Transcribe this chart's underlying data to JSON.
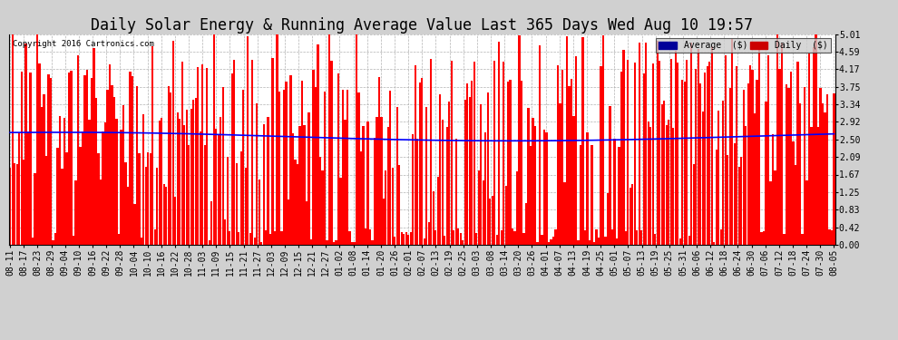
{
  "title": "Daily Solar Energy & Running Average Value Last 365 Days Wed Aug 10 19:57",
  "copyright": "Copyright 2016 Cartronics.com",
  "ylabel_right": [
    "5.01",
    "4.59",
    "4.17",
    "3.75",
    "3.34",
    "2.92",
    "2.50",
    "2.09",
    "1.67",
    "1.25",
    "0.83",
    "0.42",
    "0.00"
  ],
  "ymax": 5.01,
  "ymin": 0.0,
  "bar_color": "#ff0000",
  "avg_color": "#0000ff",
  "background_color": "#d0d0d0",
  "plot_background": "#ffffff",
  "legend_avg_color": "#000099",
  "legend_daily_color": "#cc0000",
  "title_fontsize": 12,
  "tick_fontsize": 7,
  "xtick_labels": [
    "08-11",
    "08-17",
    "08-23",
    "08-29",
    "09-04",
    "09-10",
    "09-16",
    "09-22",
    "09-28",
    "10-04",
    "10-10",
    "10-16",
    "10-22",
    "10-28",
    "11-03",
    "11-09",
    "11-15",
    "11-21",
    "11-27",
    "12-03",
    "12-09",
    "12-15",
    "12-21",
    "12-27",
    "01-02",
    "01-08",
    "01-14",
    "01-20",
    "01-26",
    "02-01",
    "02-07",
    "02-13",
    "02-19",
    "02-25",
    "03-03",
    "03-08",
    "03-14",
    "03-20",
    "03-26",
    "04-01",
    "04-07",
    "04-13",
    "04-19",
    "04-25",
    "05-01",
    "05-07",
    "05-13",
    "05-19",
    "05-25",
    "05-31",
    "06-06",
    "06-12",
    "06-18",
    "06-24",
    "06-30",
    "07-06",
    "07-12",
    "07-18",
    "07-24",
    "07-30",
    "08-05"
  ]
}
